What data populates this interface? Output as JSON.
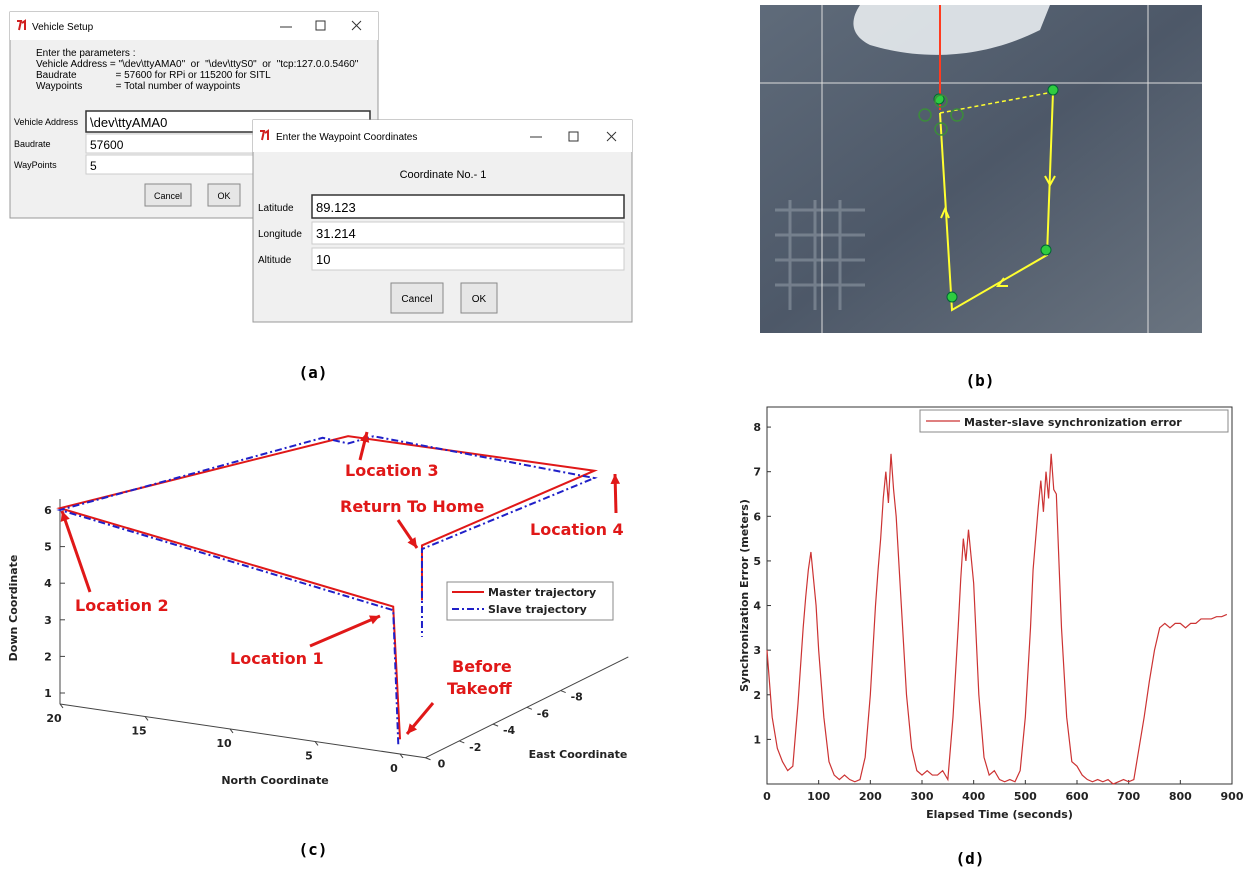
{
  "panel_a": {
    "caption": "(a)",
    "vehicle_setup": {
      "title": "Vehicle Setup",
      "instructions": [
        "Enter the parameters :",
        "Vehicle Address = \"\\dev\\ttyAMA0\"  or  \"\\dev\\ttyS0\"  or  \"tcp:127.0.0.5460\"",
        "Baudrate              = 57600 for RPi or 115200 for SITL",
        "Waypoints            = Total number of waypoints"
      ],
      "fields": [
        {
          "label": "Vehicle Address",
          "value": "\\dev\\ttyAMA0"
        },
        {
          "label": "Baudrate",
          "value": "57600"
        },
        {
          "label": "WayPoints",
          "value": "5"
        }
      ],
      "buttons": [
        "Cancel",
        "OK"
      ]
    },
    "waypoint_dialog": {
      "title": "Enter the Waypoint Coordinates",
      "heading": "Coordinate No.- 1",
      "fields": [
        {
          "label": "Latitude",
          "value": "89.123"
        },
        {
          "label": "Longitude",
          "value": "31.214"
        },
        {
          "label": "Altitude",
          "value": "10"
        }
      ],
      "buttons": [
        "Cancel",
        "OK"
      ]
    }
  },
  "panel_b": {
    "caption": "(b)"
  },
  "chart_data": [
    {
      "type": "line3d",
      "caption": "(c)",
      "xlabel": "North Coordinate",
      "ylabel": "East Coordinate",
      "zlabel": "Down Coordinate",
      "xlim": [
        -1.5,
        20
      ],
      "xticks": [
        0,
        5,
        10,
        15,
        20
      ],
      "ylim": [
        0,
        -12
      ],
      "yticks": [
        0,
        -2,
        -4,
        -6,
        -8
      ],
      "zlim": [
        0.7,
        6.3
      ],
      "zticks": [
        1,
        2,
        3,
        4,
        5,
        6
      ],
      "series": [
        {
          "name": "Master trajectory",
          "color": "#e01818",
          "dash": "solid",
          "x": [
            0,
            0.4,
            20,
            12,
            0,
            0,
            0
          ],
          "y": [
            0,
            0,
            0,
            -9,
            -11.5,
            -1.3,
            -1.3
          ],
          "z": [
            1.1,
            4.7,
            6.05,
            6.5,
            5.8,
            6.1,
            4.6
          ]
        },
        {
          "name": "Slave trajectory",
          "color": "#2020c8",
          "dash": "dashdot",
          "x": [
            0.3,
            0.4,
            20,
            13,
            12,
            11,
            0,
            0,
            0
          ],
          "y": [
            -0.2,
            0,
            0,
            -8.5,
            -9,
            -9.5,
            -11.5,
            -1.3,
            -1.3
          ],
          "z": [
            0.9,
            4.6,
            6.0,
            6.5,
            6.3,
            6.45,
            5.6,
            6.0,
            3.6
          ]
        }
      ],
      "annotations": [
        "Location 3",
        "Return To Home",
        "Location 4",
        "Location 2",
        "Location 1",
        "Before",
        "Takeoff"
      ]
    },
    {
      "type": "line",
      "caption": "(d)",
      "xlabel": "Elapsed Time (seconds)",
      "ylabel": "Synchronization Error (meters)",
      "xlim": [
        0,
        900
      ],
      "xticks": [
        0,
        100,
        200,
        300,
        400,
        500,
        600,
        700,
        800,
        900
      ],
      "ylim": [
        0,
        8.45
      ],
      "yticks": [
        1,
        2,
        3,
        4,
        5,
        6,
        7,
        8
      ],
      "series": [
        {
          "name": "Master-slave synchronization error",
          "color": "#cc3333",
          "x": [
            0,
            10,
            20,
            30,
            40,
            50,
            60,
            70,
            75,
            80,
            85,
            90,
            95,
            100,
            110,
            120,
            130,
            140,
            150,
            160,
            170,
            180,
            190,
            200,
            210,
            215,
            220,
            225,
            230,
            235,
            240,
            245,
            250,
            260,
            270,
            280,
            290,
            300,
            310,
            320,
            330,
            340,
            350,
            360,
            370,
            375,
            380,
            385,
            390,
            395,
            400,
            410,
            420,
            430,
            440,
            450,
            460,
            470,
            480,
            490,
            500,
            510,
            515,
            520,
            525,
            530,
            535,
            540,
            545,
            550,
            555,
            560,
            570,
            580,
            590,
            600,
            610,
            620,
            630,
            640,
            650,
            660,
            670,
            680,
            690,
            700,
            710,
            720,
            730,
            740,
            750,
            760,
            770,
            780,
            790,
            800,
            810,
            820,
            830,
            840,
            850,
            860,
            870,
            880,
            890
          ],
          "values": [
            3,
            1.5,
            0.8,
            0.5,
            0.3,
            0.4,
            1.8,
            3.5,
            4.2,
            4.8,
            5.2,
            4.6,
            4,
            3,
            1.5,
            0.5,
            0.2,
            0.1,
            0.2,
            0.1,
            0.05,
            0.1,
            0.6,
            2,
            4,
            4.8,
            5.5,
            6.4,
            7,
            6.3,
            7.4,
            6.6,
            6,
            4,
            2,
            0.8,
            0.3,
            0.2,
            0.3,
            0.2,
            0.2,
            0.3,
            0.1,
            1.5,
            3.5,
            4.6,
            5.5,
            5,
            5.7,
            5.1,
            4.5,
            2,
            0.6,
            0.2,
            0.3,
            0.1,
            0.05,
            0.1,
            0.05,
            0.3,
            1.5,
            3.5,
            4.8,
            5.5,
            6.2,
            6.8,
            6.1,
            7,
            6.4,
            7.4,
            6.6,
            6.5,
            3.5,
            1.5,
            0.5,
            0.4,
            0.2,
            0.1,
            0.05,
            0.1,
            0.05,
            0.1,
            0,
            0.05,
            0.1,
            0.05,
            0.1,
            0.8,
            1.5,
            2.3,
            3,
            3.5,
            3.6,
            3.5,
            3.6,
            3.6,
            3.5,
            3.6,
            3.6,
            3.7,
            3.7,
            3.7,
            3.75,
            3.75,
            3.8
          ]
        }
      ]
    }
  ]
}
